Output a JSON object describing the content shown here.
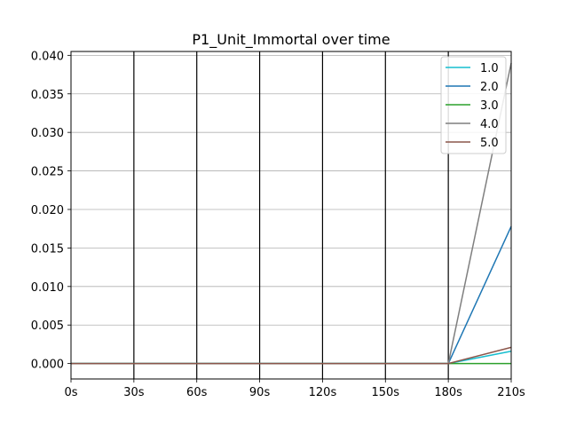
{
  "chart_data": {
    "type": "line",
    "title": "P1_Unit_Immortal over time",
    "xlabel": "",
    "ylabel": "",
    "x": [
      0,
      30,
      60,
      90,
      120,
      150,
      180,
      210
    ],
    "x_tick_labels": [
      "0s",
      "30s",
      "60s",
      "90s",
      "120s",
      "150s",
      "180s",
      "210s"
    ],
    "xlim": [
      0,
      210
    ],
    "y_ticks": [
      0.0,
      0.005,
      0.01,
      0.015,
      0.02,
      0.025,
      0.03,
      0.035,
      0.04
    ],
    "y_tick_labels": [
      "0.000",
      "0.005",
      "0.010",
      "0.015",
      "0.020",
      "0.025",
      "0.030",
      "0.035",
      "0.040"
    ],
    "ylim": [
      -0.002,
      0.0405
    ],
    "grid": "horizontal",
    "vertical_markers": [
      30,
      60,
      90,
      120,
      150,
      180
    ],
    "legend_position": "top-right",
    "series": [
      {
        "name": "1.0",
        "color": "#17becf",
        "values": [
          0,
          0,
          0,
          0,
          0,
          0,
          0,
          0.0016
        ]
      },
      {
        "name": "2.0",
        "color": "#1f77b4",
        "values": [
          0,
          0,
          0,
          0,
          0,
          0,
          0,
          0.0178
        ]
      },
      {
        "name": "3.0",
        "color": "#2ca02c",
        "values": [
          0,
          0,
          0,
          0,
          0,
          0,
          0,
          0.0
        ]
      },
      {
        "name": "4.0",
        "color": "#7f7f7f",
        "values": [
          0,
          0,
          0,
          0,
          0,
          0,
          0,
          0.039
        ]
      },
      {
        "name": "5.0",
        "color": "#8c564b",
        "values": [
          0,
          0,
          0,
          0,
          0,
          0,
          0,
          0.0021
        ]
      }
    ]
  }
}
